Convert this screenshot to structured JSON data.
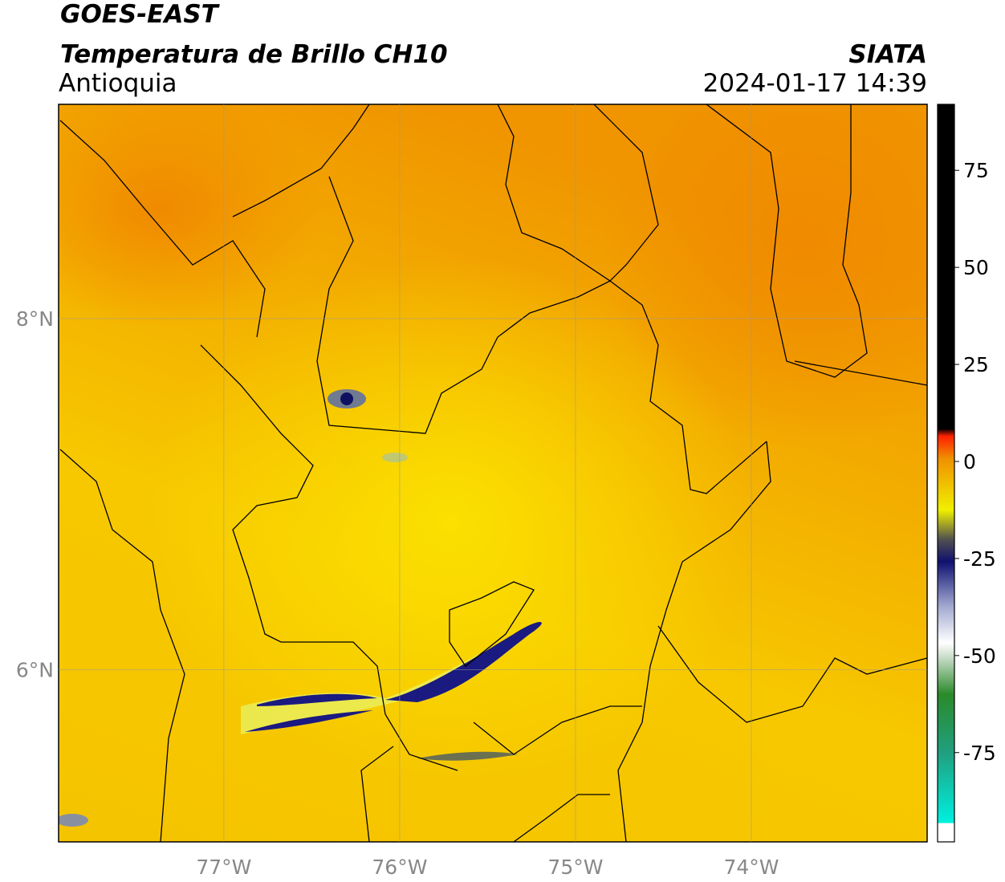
{
  "header": {
    "title": "GOES-EAST",
    "subtitle": "Temperatura de Brillo CH10",
    "region": "Antioquia",
    "agency": "SIATA",
    "datetime": "2024-01-17 14:39"
  },
  "map": {
    "xlim": [
      -77.94,
      -73.0
    ],
    "ylim": [
      5.02,
      9.22
    ],
    "xticks": [
      {
        "value": -77,
        "label": "77°W"
      },
      {
        "value": -76,
        "label": "76°W"
      },
      {
        "value": -75,
        "label": "75°W"
      },
      {
        "value": -74,
        "label": "74°W"
      }
    ],
    "yticks": [
      {
        "value": 8,
        "label": "8°N"
      },
      {
        "value": 6,
        "label": "6°N"
      }
    ]
  },
  "colorbar": {
    "lim": [
      -98,
      92
    ],
    "ticks": [
      75,
      50,
      25,
      0,
      -25,
      -50,
      -75
    ]
  }
}
